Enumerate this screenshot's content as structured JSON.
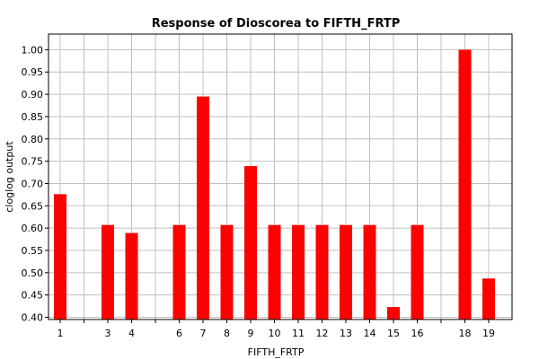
{
  "chart_data": {
    "type": "bar",
    "title": "Response of Dioscorea to FIFTH_FRTP",
    "xlabel": "FIFTH_FRTP",
    "ylabel": "cloglog output",
    "x_ticks": [
      1,
      2,
      3,
      4,
      5,
      6,
      7,
      8,
      9,
      10,
      11,
      12,
      13,
      14,
      15,
      16,
      17,
      18,
      19
    ],
    "x_tick_labels": [
      "1",
      "",
      "3",
      "4",
      "",
      "6",
      "7",
      "8",
      "9",
      "10",
      "11",
      "12",
      "13",
      "14",
      "15",
      "16",
      "",
      "18",
      "19"
    ],
    "categories": [
      "1",
      "3",
      "4",
      "6",
      "7",
      "8",
      "9",
      "10",
      "11",
      "12",
      "13",
      "14",
      "15",
      "16",
      "18",
      "19"
    ],
    "x": [
      1,
      3,
      4,
      6,
      7,
      8,
      9,
      10,
      11,
      12,
      13,
      14,
      15,
      16,
      18,
      19
    ],
    "values": [
      0.676,
      0.607,
      0.589,
      0.607,
      0.895,
      0.607,
      0.739,
      0.607,
      0.607,
      0.607,
      0.607,
      0.607,
      0.423,
      0.607,
      1.0,
      0.487
    ],
    "ylim": [
      0.395,
      1.035
    ],
    "y_ticks": [
      0.4,
      0.45,
      0.5,
      0.55,
      0.6,
      0.65,
      0.7,
      0.75,
      0.8,
      0.85,
      0.9,
      0.95,
      1.0
    ],
    "y_tick_labels": [
      "0.40",
      "0.45",
      "0.50",
      "0.55",
      "0.60",
      "0.65",
      "0.70",
      "0.75",
      "0.80",
      "0.85",
      "0.90",
      "0.95",
      "1.00"
    ],
    "grid": true,
    "colors": {
      "bar": "#ff0000",
      "grid": "#c0c0c0",
      "axis": "#000000"
    }
  }
}
